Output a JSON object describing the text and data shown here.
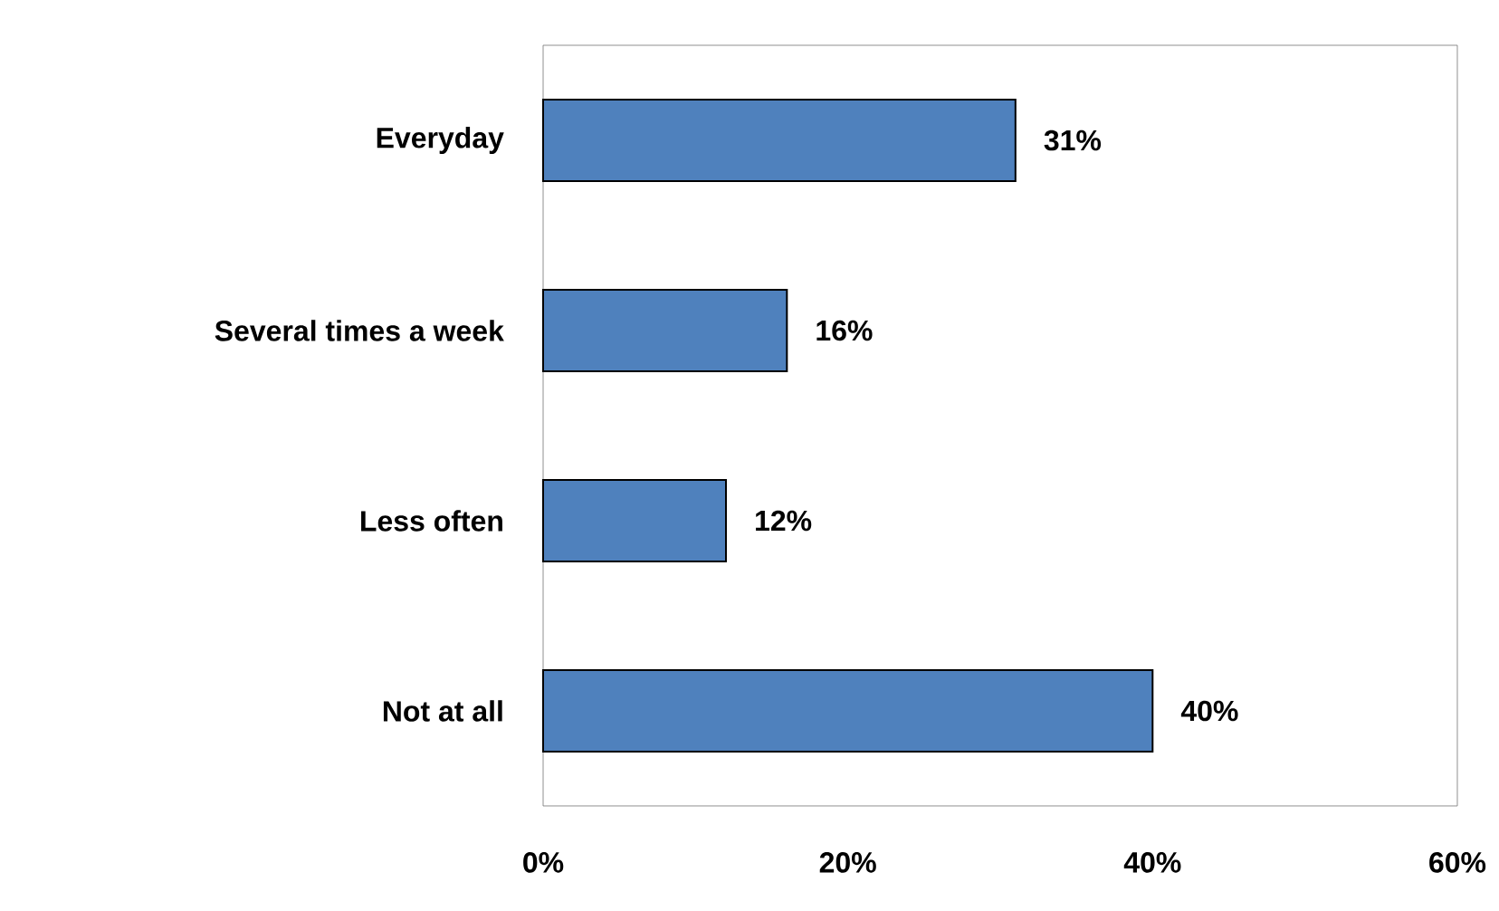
{
  "chart_data": {
    "type": "bar",
    "orientation": "horizontal",
    "categories": [
      "Everyday",
      "Several times a week",
      "Less often",
      "Not at all"
    ],
    "values": [
      31,
      16,
      12,
      40
    ],
    "value_labels": [
      "31%",
      "16%",
      "12%",
      "40%"
    ],
    "color": "#4f81bd",
    "xlim": [
      0,
      60
    ],
    "xticks": [
      {
        "value": 0,
        "label": "0%"
      },
      {
        "value": 20,
        "label": "20%"
      },
      {
        "value": 40,
        "label": "40%"
      },
      {
        "value": 60,
        "label": "60%"
      }
    ]
  }
}
